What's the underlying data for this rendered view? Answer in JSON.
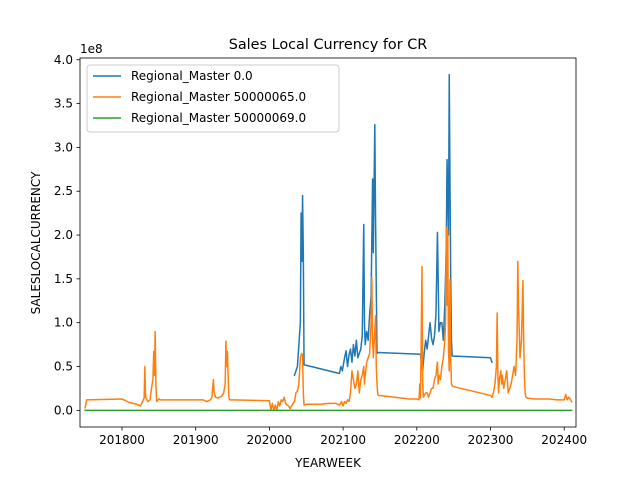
{
  "chart_data": {
    "type": "line",
    "title": "Sales Local Currency for CR",
    "xlabel": "YEARWEEK",
    "ylabel": "SALESLOCALCURRENCY",
    "y_offset_label": "1e8",
    "xlim": [
      201743,
      202416
    ],
    "ylim": [
      -0.19,
      4.02
    ],
    "x_ticks": [
      201800,
      201900,
      202000,
      202100,
      202200,
      202300,
      202400
    ],
    "x_tick_labels": [
      "201800",
      "201900",
      "202000",
      "202100",
      "202200",
      "202300",
      "202400"
    ],
    "y_ticks": [
      0.0,
      0.5,
      1.0,
      1.5,
      2.0,
      2.5,
      3.0,
      3.5,
      4.0
    ],
    "y_tick_labels": [
      "0.0",
      "0.5",
      "1.0",
      "1.5",
      "2.0",
      "2.5",
      "3.0",
      "3.5",
      "4.0"
    ],
    "legend_position": "top-left",
    "series": [
      {
        "name": "Regional_Master 0.0",
        "color": "#1f77b4",
        "points": [
          [
            202034,
            0.4
          ],
          [
            202036,
            0.45
          ],
          [
            202038,
            0.5
          ],
          [
            202040,
            0.75
          ],
          [
            202042,
            1.0
          ],
          [
            202043,
            2.25
          ],
          [
            202044,
            1.7
          ],
          [
            202045,
            2.45
          ],
          [
            202046,
            1.8
          ],
          [
            202047,
            0.52
          ],
          [
            202095,
            0.42
          ],
          [
            202097,
            0.5
          ],
          [
            202099,
            0.45
          ],
          [
            202102,
            0.6
          ],
          [
            202104,
            0.68
          ],
          [
            202106,
            0.5
          ],
          [
            202108,
            0.63
          ],
          [
            202110,
            0.7
          ],
          [
            202112,
            0.55
          ],
          [
            202114,
            0.75
          ],
          [
            202116,
            0.62
          ],
          [
            202118,
            0.8
          ],
          [
            202120,
            0.6
          ],
          [
            202122,
            0.65
          ],
          [
            202124,
            0.7
          ],
          [
            202126,
            0.85
          ],
          [
            202128,
            2.12
          ],
          [
            202129,
            1.0
          ],
          [
            202130,
            0.75
          ],
          [
            202132,
            0.9
          ],
          [
            202134,
            0.8
          ],
          [
            202136,
            1.1
          ],
          [
            202138,
            1.3
          ],
          [
            202140,
            2.64
          ],
          [
            202141,
            1.8
          ],
          [
            202142,
            2.55
          ],
          [
            202143,
            3.26
          ],
          [
            202144,
            2.2
          ],
          [
            202145,
            1.4
          ],
          [
            202146,
            0.65
          ],
          [
            202148,
            0.66
          ],
          [
            202205,
            0.64
          ],
          [
            202206,
            0.55
          ],
          [
            202208,
            0.45
          ],
          [
            202210,
            0.65
          ],
          [
            202212,
            0.8
          ],
          [
            202214,
            0.7
          ],
          [
            202216,
            0.85
          ],
          [
            202218,
            1.0
          ],
          [
            202220,
            0.82
          ],
          [
            202222,
            0.75
          ],
          [
            202224,
            0.85
          ],
          [
            202226,
            1.1
          ],
          [
            202228,
            2.03
          ],
          [
            202229,
            1.5
          ],
          [
            202230,
            0.9
          ],
          [
            202232,
            1.0
          ],
          [
            202234,
            1.0
          ],
          [
            202236,
            0.8
          ],
          [
            202238,
            1.2
          ],
          [
            202240,
            1.85
          ],
          [
            202241,
            2.86
          ],
          [
            202242,
            2.5
          ],
          [
            202243,
            2.0
          ],
          [
            202244,
            3.83
          ],
          [
            202245,
            2.6
          ],
          [
            202246,
            1.5
          ],
          [
            202247,
            0.8
          ],
          [
            202248,
            0.62
          ],
          [
            202300,
            0.6
          ],
          [
            202302,
            0.55
          ]
        ]
      },
      {
        "name": "Regional_Master 50000065.0",
        "color": "#ff7f0e",
        "points": [
          [
            201750,
            0.03
          ],
          [
            201752,
            0.12
          ],
          [
            201800,
            0.13
          ],
          [
            201810,
            0.09
          ],
          [
            201820,
            0.07
          ],
          [
            201825,
            0.05
          ],
          [
            201828,
            0.1
          ],
          [
            201830,
            0.14
          ],
          [
            201831,
            0.5
          ],
          [
            201832,
            0.15
          ],
          [
            201835,
            0.1
          ],
          [
            201838,
            0.12
          ],
          [
            201840,
            0.25
          ],
          [
            201842,
            0.35
          ],
          [
            201843,
            0.67
          ],
          [
            201844,
            0.4
          ],
          [
            201845,
            0.9
          ],
          [
            201846,
            0.3
          ],
          [
            201847,
            0.1
          ],
          [
            201850,
            0.13
          ],
          [
            201852,
            0.12
          ],
          [
            201900,
            0.12
          ],
          [
            201910,
            0.12
          ],
          [
            201915,
            0.1
          ],
          [
            201920,
            0.12
          ],
          [
            201922,
            0.15
          ],
          [
            201924,
            0.35
          ],
          [
            201925,
            0.2
          ],
          [
            201927,
            0.15
          ],
          [
            201930,
            0.14
          ],
          [
            201935,
            0.16
          ],
          [
            201938,
            0.2
          ],
          [
            201940,
            0.3
          ],
          [
            201941,
            0.79
          ],
          [
            201942,
            0.5
          ],
          [
            201943,
            0.67
          ],
          [
            201944,
            0.4
          ],
          [
            201945,
            0.15
          ],
          [
            201946,
            0.12
          ],
          [
            201950,
            0.12
          ],
          [
            202000,
            0.11
          ],
          [
            202002,
            0.0
          ],
          [
            202004,
            0.08
          ],
          [
            202006,
            0.0
          ],
          [
            202008,
            0.06
          ],
          [
            202010,
            0.0
          ],
          [
            202012,
            0.1
          ],
          [
            202014,
            0.05
          ],
          [
            202016,
            0.12
          ],
          [
            202018,
            0.1
          ],
          [
            202020,
            0.15
          ],
          [
            202022,
            0.08
          ],
          [
            202024,
            0.06
          ],
          [
            202026,
            0.05
          ],
          [
            202028,
            0.02
          ],
          [
            202030,
            0.05
          ],
          [
            202034,
            0.1
          ],
          [
            202036,
            0.2
          ],
          [
            202038,
            0.22
          ],
          [
            202040,
            0.3
          ],
          [
            202042,
            0.6
          ],
          [
            202044,
            0.65
          ],
          [
            202045,
            0.62
          ],
          [
            202046,
            0.2
          ],
          [
            202047,
            0.06
          ],
          [
            202050,
            0.07
          ],
          [
            202060,
            0.07
          ],
          [
            202070,
            0.07
          ],
          [
            202080,
            0.08
          ],
          [
            202090,
            0.08
          ],
          [
            202095,
            0.06
          ],
          [
            202098,
            0.1
          ],
          [
            202100,
            0.05
          ],
          [
            202102,
            0.1
          ],
          [
            202104,
            0.08
          ],
          [
            202106,
            0.12
          ],
          [
            202108,
            0.1
          ],
          [
            202110,
            0.2
          ],
          [
            202112,
            0.45
          ],
          [
            202114,
            0.35
          ],
          [
            202116,
            0.25
          ],
          [
            202118,
            0.3
          ],
          [
            202120,
            0.45
          ],
          [
            202122,
            0.2
          ],
          [
            202124,
            0.35
          ],
          [
            202126,
            0.4
          ],
          [
            202128,
            0.5
          ],
          [
            202129,
            0.3
          ],
          [
            202130,
            0.4
          ],
          [
            202132,
            0.55
          ],
          [
            202134,
            0.6
          ],
          [
            202136,
            0.65
          ],
          [
            202138,
            1.0
          ],
          [
            202139,
            1.52
          ],
          [
            202140,
            0.8
          ],
          [
            202141,
            0.6
          ],
          [
            202142,
            0.75
          ],
          [
            202143,
            0.9
          ],
          [
            202144,
            1.08
          ],
          [
            202145,
            0.5
          ],
          [
            202146,
            0.3
          ],
          [
            202147,
            0.18
          ],
          [
            202148,
            0.17
          ],
          [
            202150,
            0.17
          ],
          [
            202160,
            0.16
          ],
          [
            202170,
            0.15
          ],
          [
            202180,
            0.14
          ],
          [
            202190,
            0.13
          ],
          [
            202200,
            0.13
          ],
          [
            202203,
            0.12
          ],
          [
            202204,
            0.3
          ],
          [
            202205,
            0.14
          ],
          [
            202206,
            0.8
          ],
          [
            202207,
            1.64
          ],
          [
            202208,
            0.3
          ],
          [
            202209,
            0.15
          ],
          [
            202212,
            0.2
          ],
          [
            202214,
            0.2
          ],
          [
            202216,
            0.15
          ],
          [
            202218,
            0.2
          ],
          [
            202220,
            0.25
          ],
          [
            202222,
            0.25
          ],
          [
            202224,
            0.35
          ],
          [
            202226,
            0.4
          ],
          [
            202228,
            0.55
          ],
          [
            202229,
            0.3
          ],
          [
            202230,
            0.4
          ],
          [
            202232,
            0.35
          ],
          [
            202234,
            0.5
          ],
          [
            202236,
            0.6
          ],
          [
            202238,
            0.8
          ],
          [
            202239,
            1.0
          ],
          [
            202240,
            2.09
          ],
          [
            202241,
            1.2
          ],
          [
            202242,
            2.05
          ],
          [
            202243,
            0.7
          ],
          [
            202244,
            0.45
          ],
          [
            202245,
            1.49
          ],
          [
            202246,
            0.6
          ],
          [
            202247,
            0.3
          ],
          [
            202248,
            0.28
          ],
          [
            202250,
            0.27
          ],
          [
            202260,
            0.25
          ],
          [
            202270,
            0.23
          ],
          [
            202280,
            0.21
          ],
          [
            202290,
            0.19
          ],
          [
            202300,
            0.17
          ],
          [
            202302,
            0.15
          ],
          [
            202304,
            0.2
          ],
          [
            202306,
            0.3
          ],
          [
            202308,
            0.5
          ],
          [
            202309,
            1.11
          ],
          [
            202310,
            0.4
          ],
          [
            202311,
            0.2
          ],
          [
            202312,
            0.35
          ],
          [
            202314,
            0.45
          ],
          [
            202315,
            0.3
          ],
          [
            202316,
            0.4
          ],
          [
            202318,
            0.25
          ],
          [
            202320,
            0.35
          ],
          [
            202322,
            0.45
          ],
          [
            202324,
            0.2
          ],
          [
            202326,
            0.25
          ],
          [
            202328,
            0.3
          ],
          [
            202330,
            0.4
          ],
          [
            202332,
            0.5
          ],
          [
            202334,
            0.4
          ],
          [
            202336,
            0.8
          ],
          [
            202337,
            1.7
          ],
          [
            202338,
            1.2
          ],
          [
            202340,
            0.6
          ],
          [
            202342,
            0.8
          ],
          [
            202344,
            1.48
          ],
          [
            202345,
            0.8
          ],
          [
            202346,
            0.4
          ],
          [
            202347,
            0.2
          ],
          [
            202348,
            0.15
          ],
          [
            202350,
            0.14
          ],
          [
            202360,
            0.13
          ],
          [
            202370,
            0.13
          ],
          [
            202380,
            0.13
          ],
          [
            202390,
            0.12
          ],
          [
            202400,
            0.12
          ],
          [
            202402,
            0.18
          ],
          [
            202404,
            0.12
          ],
          [
            202406,
            0.15
          ],
          [
            202408,
            0.13
          ],
          [
            202410,
            0.1
          ]
        ]
      },
      {
        "name": "Regional_Master 50000069.0",
        "color": "#2ca02c",
        "points": [
          [
            201750,
            0.0
          ],
          [
            202410,
            0.0
          ]
        ]
      }
    ]
  }
}
